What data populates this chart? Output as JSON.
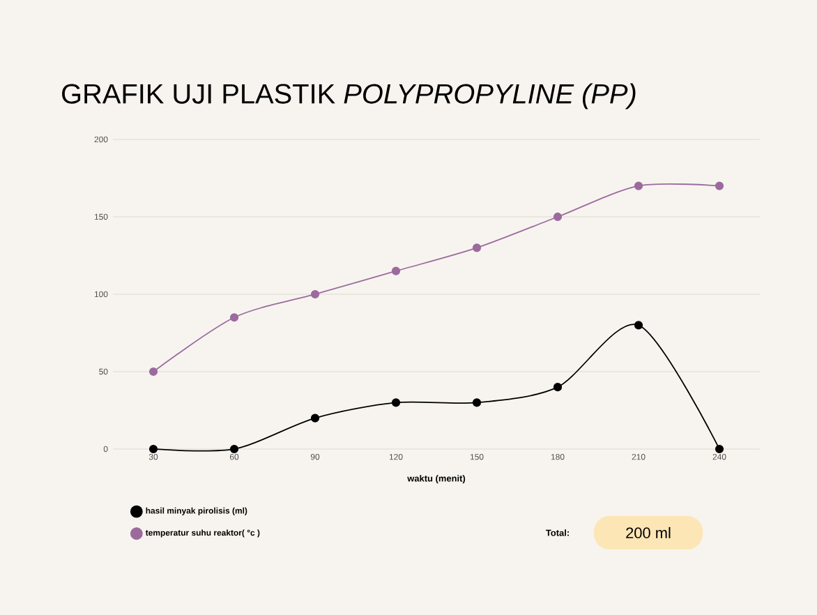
{
  "chart_data": {
    "type": "line",
    "title": "GRAFIK UJI PLASTIK *POLYPROPYLINE (PP)*",
    "xlabel": "waktu (menit)",
    "categories": [
      "30",
      "60",
      "90",
      "120",
      "150",
      "180",
      "210",
      "240"
    ],
    "series": [
      {
        "name": "hasil minyak pirolisis (ml)",
        "color": "#000000",
        "values": [
          0,
          0,
          20,
          30,
          30,
          40,
          80,
          0
        ]
      },
      {
        "name": "temperatur suhu reaktor( °c )",
        "color": "#9b6b9e",
        "values": [
          50,
          85,
          100,
          115,
          130,
          150,
          170,
          170
        ]
      }
    ],
    "ylim": [
      0,
      200
    ],
    "yticks": [
      0,
      50,
      100,
      150,
      200
    ],
    "grid": "y",
    "legend": "bottom left",
    "marker": "circle",
    "line_style": "solid",
    "annotations": [
      "Total:",
      "200 ml"
    ]
  }
}
